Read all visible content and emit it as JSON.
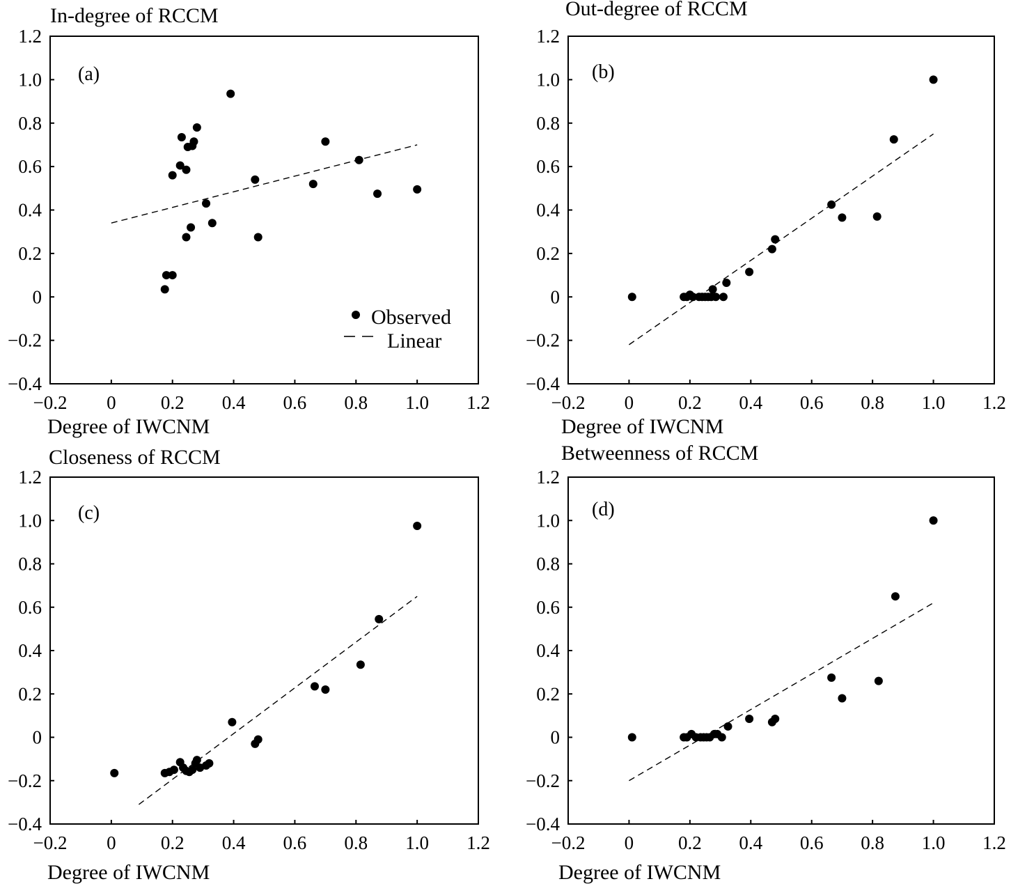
{
  "chart_data": [
    {
      "type": "scatter",
      "panel_label": "(a)",
      "ylabel": "In-degree of RCCM",
      "xlabel": "Degree of IWCNM",
      "xlim": [
        -0.2,
        1.2
      ],
      "ylim": [
        -0.4,
        1.2
      ],
      "xticks": [
        "−0.2",
        "0",
        "0.2",
        "0.4",
        "0.6",
        "0.8",
        "1.0",
        "1.2"
      ],
      "yticks": [
        "1.2",
        "1.0",
        "0.8",
        "0.6",
        "0.4",
        "0.2",
        "0",
        "−0.2",
        "−0.4"
      ],
      "grid": false,
      "legend": {
        "position": "bottom-right",
        "entries": [
          "Observed",
          "Linear"
        ]
      },
      "series": [
        {
          "kind": "points",
          "x": [
            0.39,
            0.28,
            0.23,
            0.27,
            0.25,
            0.265,
            0.225,
            0.245,
            0.2,
            0.7,
            0.81,
            0.47,
            0.66,
            1.0,
            0.87,
            0.31,
            0.33,
            0.26,
            0.48,
            0.245,
            0.18,
            0.2,
            0.175
          ],
          "y": [
            0.935,
            0.78,
            0.735,
            0.715,
            0.69,
            0.695,
            0.605,
            0.585,
            0.56,
            0.715,
            0.63,
            0.54,
            0.52,
            0.495,
            0.475,
            0.43,
            0.34,
            0.32,
            0.275,
            0.275,
            0.1,
            0.1,
            0.035
          ]
        },
        {
          "kind": "fit",
          "x": [
            0.0,
            1.0
          ],
          "y": [
            0.34,
            0.7
          ]
        }
      ]
    },
    {
      "type": "scatter",
      "panel_label": "(b)",
      "ylabel": "Out-degree of RCCM",
      "xlabel": "Degree of IWCNM",
      "xlim": [
        -0.2,
        1.2
      ],
      "ylim": [
        -0.4,
        1.2
      ],
      "xticks": [
        "−0.2",
        "0",
        "0.2",
        "0.4",
        "0.6",
        "0.8",
        "1.0",
        "1.2"
      ],
      "yticks": [
        "1.2",
        "1.0",
        "0.8",
        "0.6",
        "0.4",
        "0.2",
        "0",
        "−0.2",
        "−0.4"
      ],
      "grid": false,
      "series": [
        {
          "kind": "points",
          "x": [
            1.0,
            0.87,
            0.665,
            0.7,
            0.815,
            0.48,
            0.47,
            0.395,
            0.32,
            0.275,
            0.01,
            0.18,
            0.19,
            0.2,
            0.21,
            0.23,
            0.24,
            0.25,
            0.26,
            0.27,
            0.285,
            0.31
          ],
          "y": [
            1.0,
            0.725,
            0.425,
            0.365,
            0.37,
            0.265,
            0.22,
            0.115,
            0.065,
            0.035,
            0.0,
            0.0,
            0.0,
            0.01,
            0.0,
            0.0,
            0.0,
            0.0,
            0.0,
            0.0,
            0.0,
            0.0
          ]
        },
        {
          "kind": "fit",
          "x": [
            0.0,
            1.0
          ],
          "y": [
            -0.22,
            0.75
          ]
        }
      ]
    },
    {
      "type": "scatter",
      "panel_label": "(c)",
      "ylabel": "Closeness of RCCM",
      "xlabel": "Degree of IWCNM",
      "xlim": [
        -0.2,
        1.2
      ],
      "ylim": [
        -0.4,
        1.2
      ],
      "xticks": [
        "−0.2",
        "0",
        "0.2",
        "0.4",
        "0.6",
        "0.8",
        "1.0",
        "1.2"
      ],
      "yticks": [
        "1.2",
        "1.0",
        "0.8",
        "0.6",
        "0.4",
        "0.2",
        "0",
        "−0.2",
        "−0.4"
      ],
      "grid": false,
      "series": [
        {
          "kind": "points",
          "x": [
            1.0,
            0.875,
            0.815,
            0.665,
            0.7,
            0.395,
            0.48,
            0.47,
            0.01,
            0.175,
            0.19,
            0.205,
            0.225,
            0.235,
            0.245,
            0.255,
            0.265,
            0.275,
            0.28,
            0.29,
            0.31,
            0.32
          ],
          "y": [
            0.975,
            0.545,
            0.335,
            0.235,
            0.22,
            0.07,
            -0.01,
            -0.03,
            -0.165,
            -0.165,
            -0.16,
            -0.15,
            -0.115,
            -0.14,
            -0.155,
            -0.16,
            -0.15,
            -0.12,
            -0.105,
            -0.14,
            -0.13,
            -0.12
          ]
        },
        {
          "kind": "fit",
          "x": [
            0.09,
            1.0
          ],
          "y": [
            -0.31,
            0.65
          ]
        }
      ]
    },
    {
      "type": "scatter",
      "panel_label": "(d)",
      "ylabel": "Betweenness of RCCM",
      "xlabel": "Degree of IWCNM",
      "xlim": [
        -0.2,
        1.2
      ],
      "ylim": [
        -0.4,
        1.2
      ],
      "xticks": [
        "−0.2",
        "0",
        "0.2",
        "0.4",
        "0.6",
        "0.8",
        "1.0",
        "1.2"
      ],
      "yticks": [
        "1.2",
        "1.0",
        "0.8",
        "0.6",
        "0.4",
        "0.2",
        "0",
        "−0.2",
        "−0.4"
      ],
      "grid": false,
      "series": [
        {
          "kind": "points",
          "x": [
            1.0,
            0.875,
            0.665,
            0.82,
            0.7,
            0.395,
            0.48,
            0.47,
            0.325,
            0.01,
            0.18,
            0.19,
            0.205,
            0.22,
            0.235,
            0.245,
            0.255,
            0.265,
            0.28,
            0.29,
            0.305
          ],
          "y": [
            1.0,
            0.65,
            0.275,
            0.26,
            0.18,
            0.085,
            0.085,
            0.07,
            0.05,
            0.0,
            0.0,
            0.0,
            0.015,
            0.0,
            0.0,
            0.0,
            0.0,
            0.0,
            0.015,
            0.015,
            0.0
          ]
        },
        {
          "kind": "fit",
          "x": [
            0.0,
            1.0
          ],
          "y": [
            -0.2,
            0.62
          ]
        }
      ]
    }
  ]
}
